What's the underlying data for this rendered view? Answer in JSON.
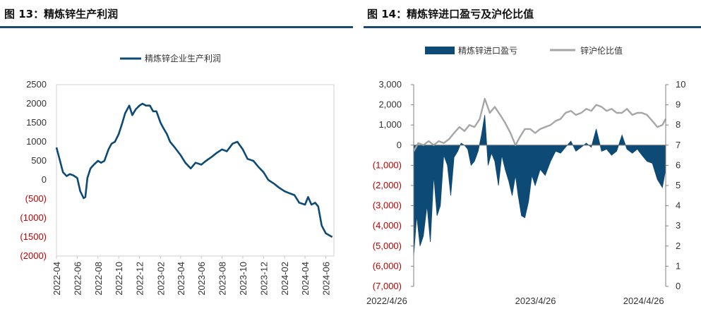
{
  "titles": {
    "left": "图 13：精炼锌生产利润",
    "right": "图 14：精炼锌进口盈亏及沪伦比值"
  },
  "colors": {
    "navy": "#0d4a76",
    "grey": "#a6a6a6",
    "negative": "#c00000",
    "axis_text": "#333333",
    "rule": "#1b4c6e"
  },
  "chart_data": [
    {
      "type": "line",
      "title": "",
      "xlabel": "",
      "ylabel": "",
      "ylim": [
        -2000,
        2500
      ],
      "yticks": [
        2500,
        2000,
        1500,
        1000,
        500,
        0,
        -500,
        -1000,
        -1500,
        -2000
      ],
      "ytick_labels": [
        "2500",
        "2000",
        "1500",
        "1000",
        "500",
        "0",
        "(500)",
        "(1000)",
        "(1500)",
        "(2000)"
      ],
      "xlim": [
        "2022-04-01",
        "2024-06-25"
      ],
      "xtick_labels": [
        "2022-04",
        "2022-06",
        "2022-08",
        "2022-10",
        "2022-12",
        "2023-02",
        "2023-04",
        "2023-06",
        "2023-08",
        "2023-10",
        "2023-12",
        "2024-02",
        "2024-04",
        "2024-06"
      ],
      "grid": false,
      "legend_position": "top-center",
      "series": [
        {
          "name": "精炼锌企业生产利润",
          "color": "#0d4a76",
          "x": [
            "2022-04-01",
            "2022-04-10",
            "2022-04-20",
            "2022-05-01",
            "2022-05-10",
            "2022-05-20",
            "2022-06-01",
            "2022-06-10",
            "2022-06-20",
            "2022-06-25",
            "2022-07-01",
            "2022-07-10",
            "2022-07-20",
            "2022-08-01",
            "2022-08-10",
            "2022-08-20",
            "2022-09-01",
            "2022-09-10",
            "2022-09-20",
            "2022-10-01",
            "2022-10-10",
            "2022-10-20",
            "2022-11-01",
            "2022-11-10",
            "2022-11-20",
            "2022-12-01",
            "2022-12-10",
            "2022-12-20",
            "2023-01-01",
            "2023-01-10",
            "2023-01-20",
            "2023-02-01",
            "2023-02-10",
            "2023-02-20",
            "2023-03-01",
            "2023-03-15",
            "2023-04-01",
            "2023-04-15",
            "2023-05-01",
            "2023-05-15",
            "2023-06-01",
            "2023-06-15",
            "2023-07-01",
            "2023-07-15",
            "2023-08-01",
            "2023-08-15",
            "2023-09-01",
            "2023-09-15",
            "2023-10-01",
            "2023-10-15",
            "2023-11-01",
            "2023-11-15",
            "2023-12-01",
            "2023-12-15",
            "2024-01-01",
            "2024-01-15",
            "2024-02-01",
            "2024-02-15",
            "2024-03-01",
            "2024-03-15",
            "2024-04-01",
            "2024-04-10",
            "2024-04-20",
            "2024-05-01",
            "2024-05-10",
            "2024-05-20",
            "2024-06-01",
            "2024-06-10",
            "2024-06-20"
          ],
          "values": [
            850,
            550,
            200,
            100,
            150,
            120,
            50,
            -300,
            -480,
            -450,
            50,
            300,
            400,
            500,
            450,
            500,
            800,
            950,
            1000,
            1200,
            1450,
            1750,
            1950,
            1700,
            1850,
            1950,
            2000,
            1950,
            1950,
            1800,
            1800,
            1500,
            1350,
            1200,
            1000,
            850,
            650,
            450,
            300,
            450,
            400,
            500,
            600,
            700,
            800,
            750,
            950,
            1000,
            800,
            550,
            500,
            350,
            200,
            0,
            -100,
            -200,
            -300,
            -350,
            -400,
            -600,
            -650,
            -450,
            -650,
            -600,
            -700,
            -1200,
            -1400,
            -1450,
            -1500
          ]
        }
      ]
    },
    {
      "type": "area",
      "title": "",
      "xlabel": "",
      "ylabel_left": "",
      "ylabel_right": "",
      "ylim": [
        -7000,
        3000
      ],
      "yticks": [
        3000,
        2000,
        1000,
        0,
        -1000,
        -2000,
        -3000,
        -4000,
        -5000,
        -6000,
        -7000
      ],
      "ytick_labels": [
        "3,000",
        "2,000",
        "1,000",
        "0",
        "(1,000)",
        "(2,000)",
        "(3,000)",
        "(4,000)",
        "(5,000)",
        "(6,000)",
        "(7,000)"
      ],
      "y2lim": [
        0,
        10
      ],
      "y2ticks": [
        10,
        9,
        8,
        7,
        6,
        5,
        4,
        3,
        2,
        1,
        0
      ],
      "y2tick_labels": [
        "10",
        "9",
        "8",
        "7",
        "6",
        "5",
        "4",
        "3",
        "2",
        "1",
        "0"
      ],
      "xlim": [
        "2022-04-26",
        "2024-05-20"
      ],
      "xtick_labels": [
        "2022/4/26",
        "2023/4/26",
        "2024/4/26"
      ],
      "xtick_dates": [
        "2022-04-26",
        "2023-04-26",
        "2024-04-26"
      ],
      "grid": false,
      "legend_position": "top-center",
      "series": [
        {
          "name": "精炼锌进口盈亏",
          "kind": "area",
          "axis": "left",
          "color": "#0d4a76",
          "x": [
            "2022-04-26",
            "2022-05-05",
            "2022-05-15",
            "2022-05-25",
            "2022-06-05",
            "2022-06-15",
            "2022-06-25",
            "2022-07-05",
            "2022-07-15",
            "2022-07-25",
            "2022-08-05",
            "2022-08-15",
            "2022-08-25",
            "2022-09-05",
            "2022-09-15",
            "2022-09-25",
            "2022-10-05",
            "2022-10-15",
            "2022-10-25",
            "2022-11-05",
            "2022-11-15",
            "2022-11-25",
            "2022-12-05",
            "2022-12-15",
            "2022-12-25",
            "2023-01-05",
            "2023-01-15",
            "2023-01-25",
            "2023-02-05",
            "2023-02-15",
            "2023-02-25",
            "2023-03-05",
            "2023-03-15",
            "2023-03-25",
            "2023-04-05",
            "2023-04-15",
            "2023-04-25",
            "2023-05-10",
            "2023-05-25",
            "2023-06-10",
            "2023-06-25",
            "2023-07-10",
            "2023-07-25",
            "2023-08-10",
            "2023-08-25",
            "2023-09-10",
            "2023-09-25",
            "2023-10-10",
            "2023-10-25",
            "2023-11-10",
            "2023-11-25",
            "2023-12-10",
            "2023-12-25",
            "2024-01-10",
            "2024-01-25",
            "2024-02-10",
            "2024-02-25",
            "2024-03-10",
            "2024-03-25",
            "2024-04-10",
            "2024-04-25",
            "2024-05-10",
            "2024-05-20"
          ],
          "values": [
            -5500,
            -3500,
            -5000,
            -4500,
            -3000,
            -4800,
            -1500,
            -3500,
            -3000,
            -500,
            -1000,
            -2500,
            -600,
            -300,
            100,
            0,
            -200,
            -1000,
            -800,
            -300,
            500,
            1500,
            -1000,
            -400,
            -800,
            -2000,
            -500,
            -1200,
            -1800,
            -2500,
            -1500,
            -2500,
            -3500,
            -3600,
            -2800,
            -1500,
            -2000,
            -1200,
            -1500,
            -800,
            -300,
            -400,
            -100,
            200,
            -300,
            -100,
            100,
            -100,
            800,
            -300,
            -200,
            -500,
            -300,
            500,
            -200,
            -400,
            -200,
            -500,
            -800,
            -900,
            -1700,
            -2100,
            -1200
          ]
        },
        {
          "name": "锌沪伦比值",
          "kind": "line",
          "axis": "right",
          "color": "#a6a6a6",
          "x": [
            "2022-04-26",
            "2022-05-10",
            "2022-05-25",
            "2022-06-10",
            "2022-06-25",
            "2022-07-10",
            "2022-07-25",
            "2022-08-10",
            "2022-08-25",
            "2022-09-10",
            "2022-09-25",
            "2022-10-10",
            "2022-10-25",
            "2022-11-10",
            "2022-11-25",
            "2022-12-10",
            "2022-12-25",
            "2023-01-10",
            "2023-01-25",
            "2023-02-10",
            "2023-02-25",
            "2023-03-10",
            "2023-03-25",
            "2023-04-10",
            "2023-04-25",
            "2023-05-10",
            "2023-05-25",
            "2023-06-10",
            "2023-06-25",
            "2023-07-10",
            "2023-07-25",
            "2023-08-10",
            "2023-08-25",
            "2023-09-10",
            "2023-09-25",
            "2023-10-10",
            "2023-10-25",
            "2023-11-10",
            "2023-11-25",
            "2023-12-10",
            "2023-12-25",
            "2024-01-10",
            "2024-01-25",
            "2024-02-10",
            "2024-02-25",
            "2024-03-10",
            "2024-03-25",
            "2024-04-10",
            "2024-04-25",
            "2024-05-10",
            "2024-05-20"
          ],
          "values": [
            6.7,
            7.1,
            7.0,
            7.2,
            7.0,
            7.2,
            7.1,
            7.3,
            7.6,
            7.9,
            7.7,
            8.0,
            7.9,
            8.3,
            9.3,
            8.6,
            8.9,
            8.5,
            8.1,
            7.6,
            7.0,
            7.4,
            7.8,
            7.8,
            7.6,
            7.8,
            7.9,
            8.0,
            8.2,
            8.3,
            8.6,
            8.7,
            8.5,
            8.6,
            8.8,
            8.7,
            9.0,
            8.9,
            8.7,
            8.8,
            8.6,
            8.6,
            8.8,
            8.5,
            8.6,
            8.6,
            8.5,
            8.2,
            7.9,
            8.0,
            8.3
          ]
        }
      ]
    }
  ]
}
